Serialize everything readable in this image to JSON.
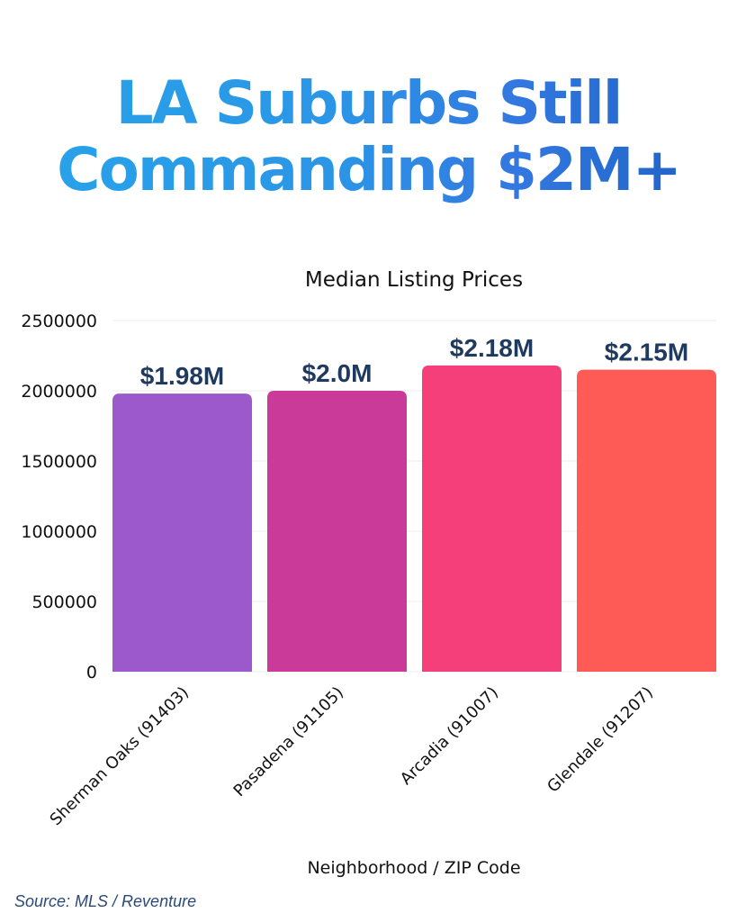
{
  "headline": {
    "line1": "LA Suburbs Still",
    "line2": "Commanding $2M+"
  },
  "source": "Source: MLS / Reventure",
  "chart_data": {
    "type": "bar",
    "title": "Median Listing Prices",
    "xlabel": "Neighborhood / ZIP Code",
    "ylabel": "",
    "categories": [
      "Sherman Oaks (91403)",
      "Pasadena (91105)",
      "Arcadia (91007)",
      "Glendale (91207)"
    ],
    "values": [
      1980000,
      2000000,
      2180000,
      2150000
    ],
    "data_labels": [
      "$1.98M",
      "$2.0M",
      "$2.18M",
      "$2.15M"
    ],
    "colors": [
      "#9b59cb",
      "#c93a99",
      "#f43f7a",
      "#ff5b56"
    ],
    "ylim": [
      0,
      2500000
    ],
    "yticks": [
      "0",
      "500000",
      "1000000",
      "1500000",
      "2000000",
      "2500000"
    ],
    "grid": true,
    "legend": "none"
  }
}
